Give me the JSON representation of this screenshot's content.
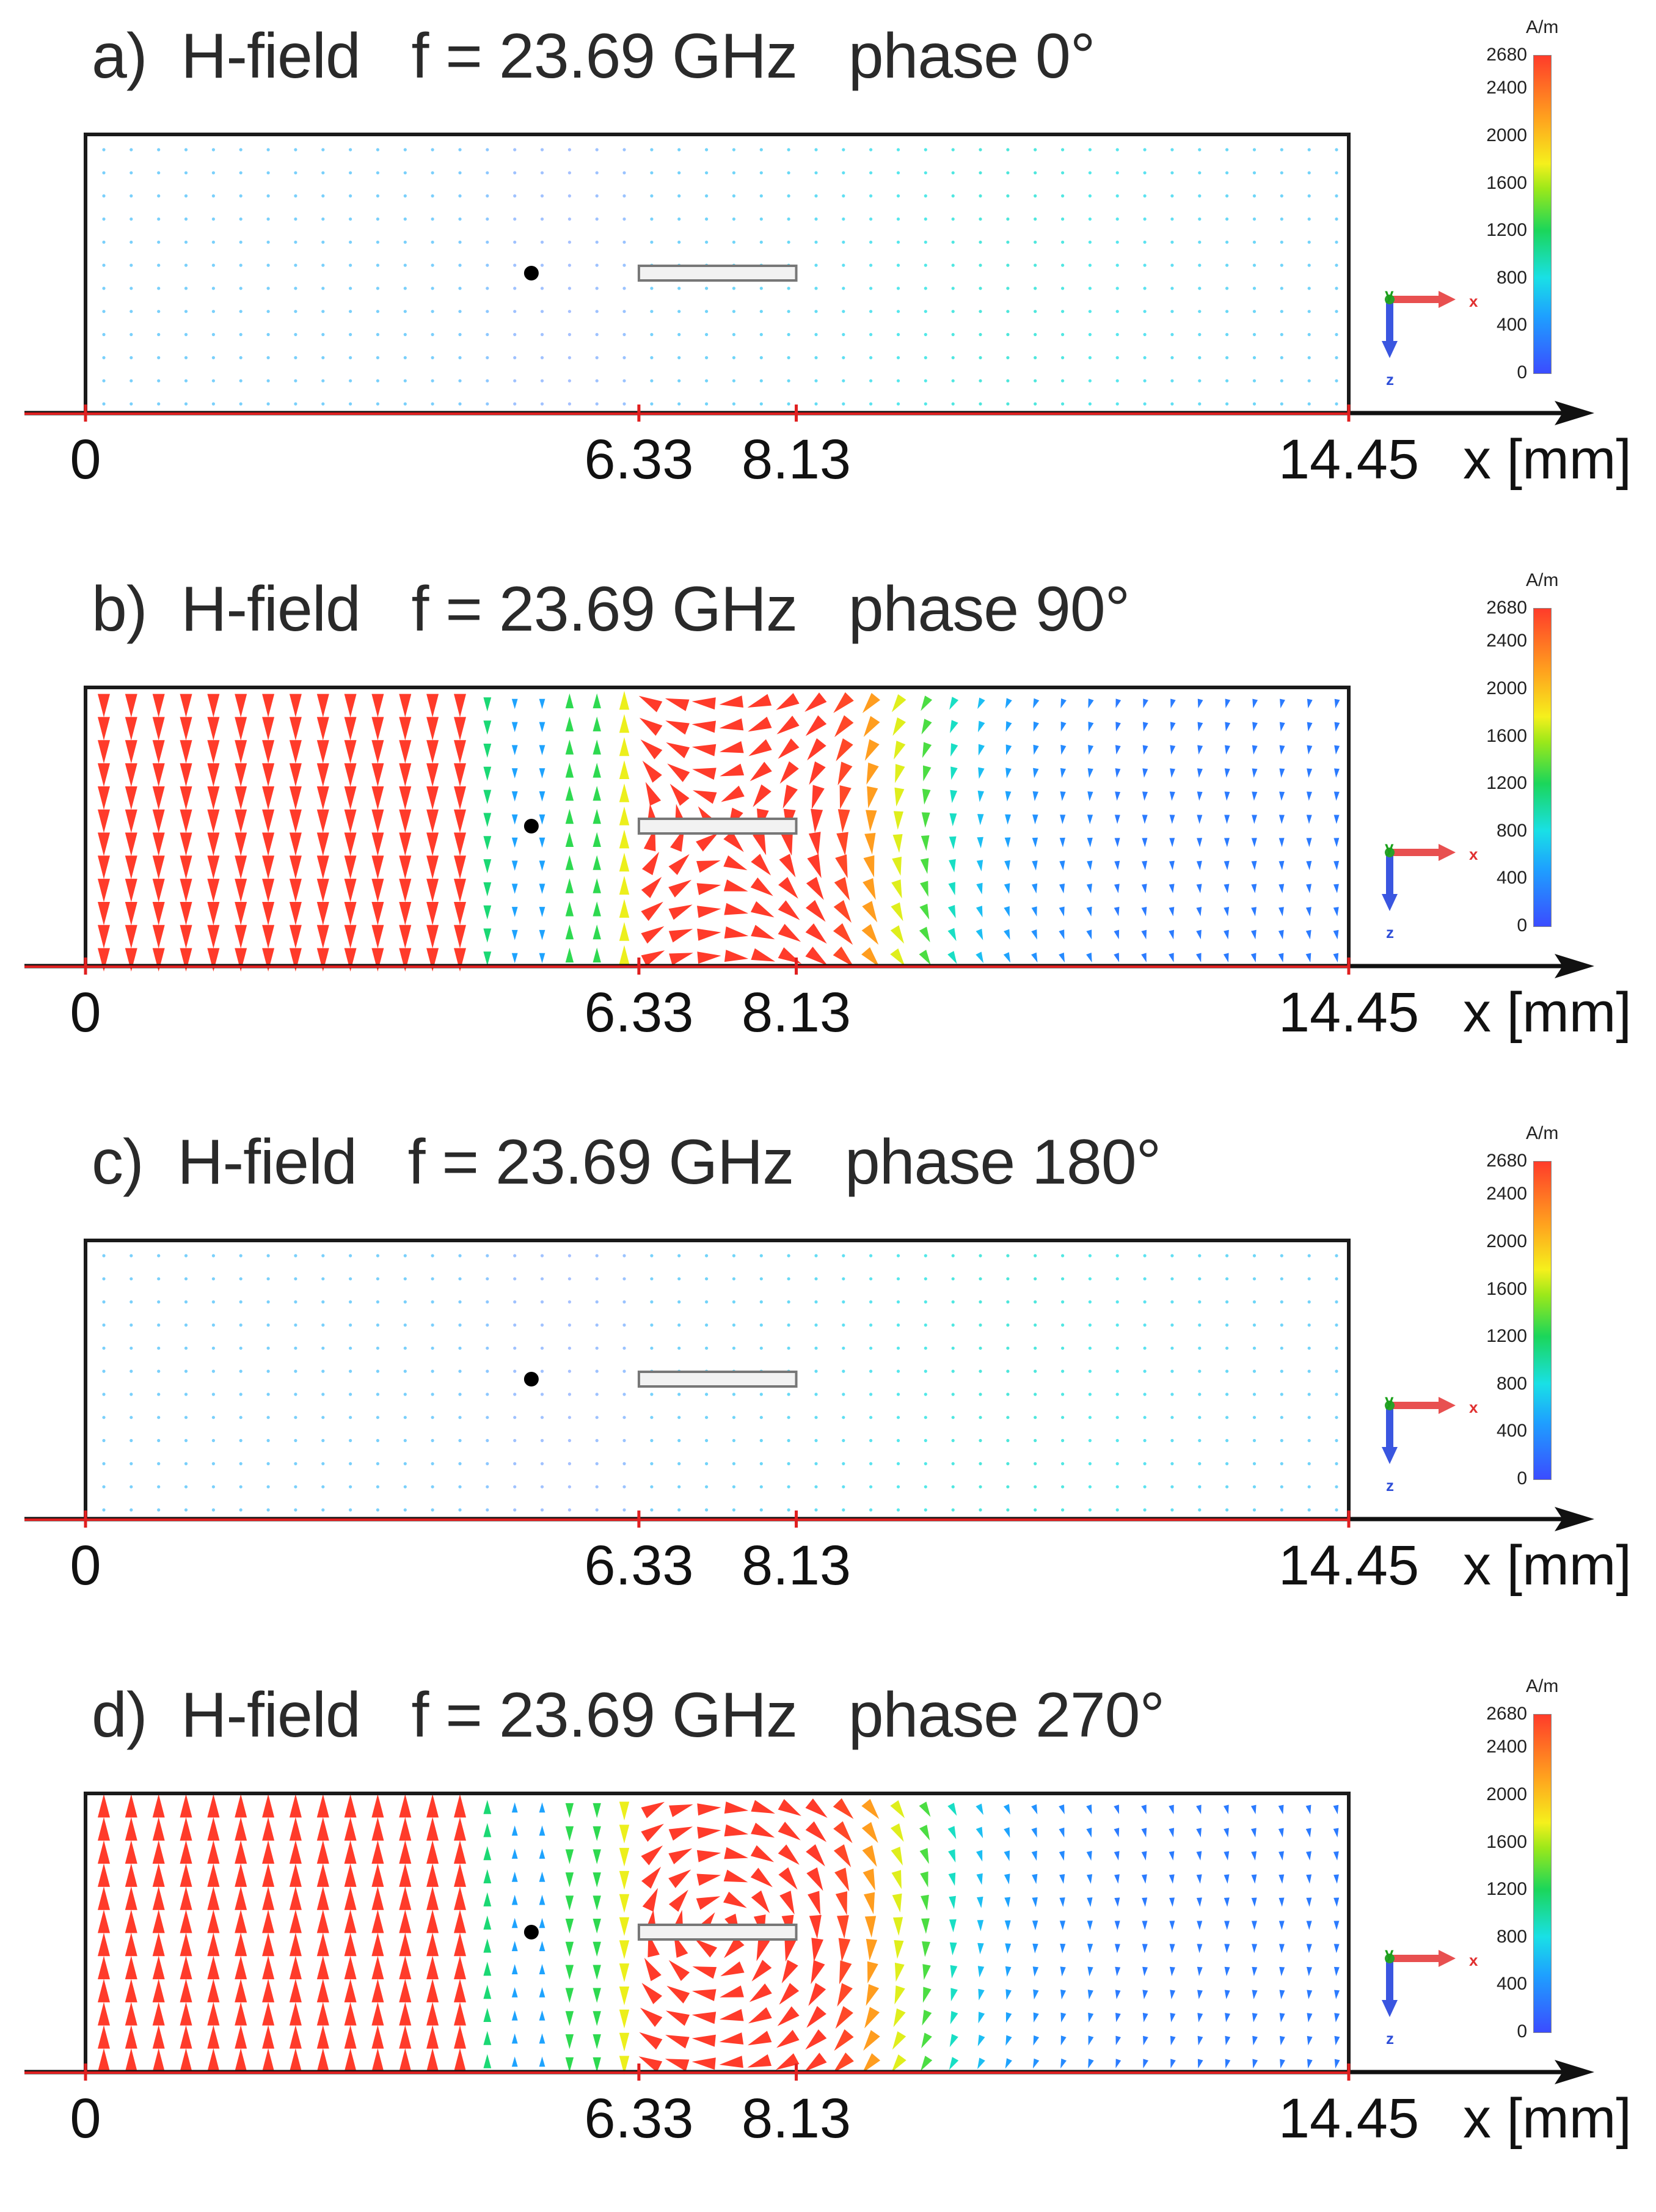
{
  "figure": {
    "panels": [
      {
        "id": "a",
        "label": "a)",
        "quantity": "H-field",
        "frequency": "f = 23.69 GHz",
        "phase": "phase 0°",
        "phase_deg": 0,
        "field_strength": "weak"
      },
      {
        "id": "b",
        "label": "b)",
        "quantity": "H-field",
        "frequency": "f = 23.69 GHz",
        "phase": "phase 90°",
        "phase_deg": 90,
        "field_strength": "strong"
      },
      {
        "id": "c",
        "label": "c)",
        "quantity": "H-field",
        "frequency": "f = 23.69 GHz",
        "phase": "phase 180°",
        "phase_deg": 180,
        "field_strength": "weak"
      },
      {
        "id": "d",
        "label": "d)",
        "quantity": "H-field",
        "frequency": "f = 23.69 GHz",
        "phase": "phase 270°",
        "phase_deg": 270,
        "field_strength": "strong"
      }
    ],
    "x_axis": {
      "label": "x [mm]",
      "ticks": [
        "0",
        "6.33",
        "8.13",
        "14.45"
      ],
      "tick_values": [
        0,
        6.33,
        8.13,
        14.45
      ],
      "max_mm": 14.45
    },
    "colorbar": {
      "unit": "A/m",
      "ticks": [
        "2680",
        "2400",
        "2000",
        "1600",
        "1200",
        "800",
        "400",
        "0"
      ],
      "tick_values": [
        2680,
        2400,
        2000,
        1600,
        1200,
        800,
        400,
        0
      ],
      "max": 2680,
      "colors": [
        "#3b4cff",
        "#1ea0ff",
        "#19e0e6",
        "#1bd65a",
        "#9be81a",
        "#f5f01c",
        "#ffa31e",
        "#ff3b2a"
      ]
    },
    "triad": {
      "y": "y",
      "x": "x",
      "z": "z"
    },
    "source_point_mm": 5.1,
    "strip_mm": [
      6.33,
      8.13
    ]
  }
}
